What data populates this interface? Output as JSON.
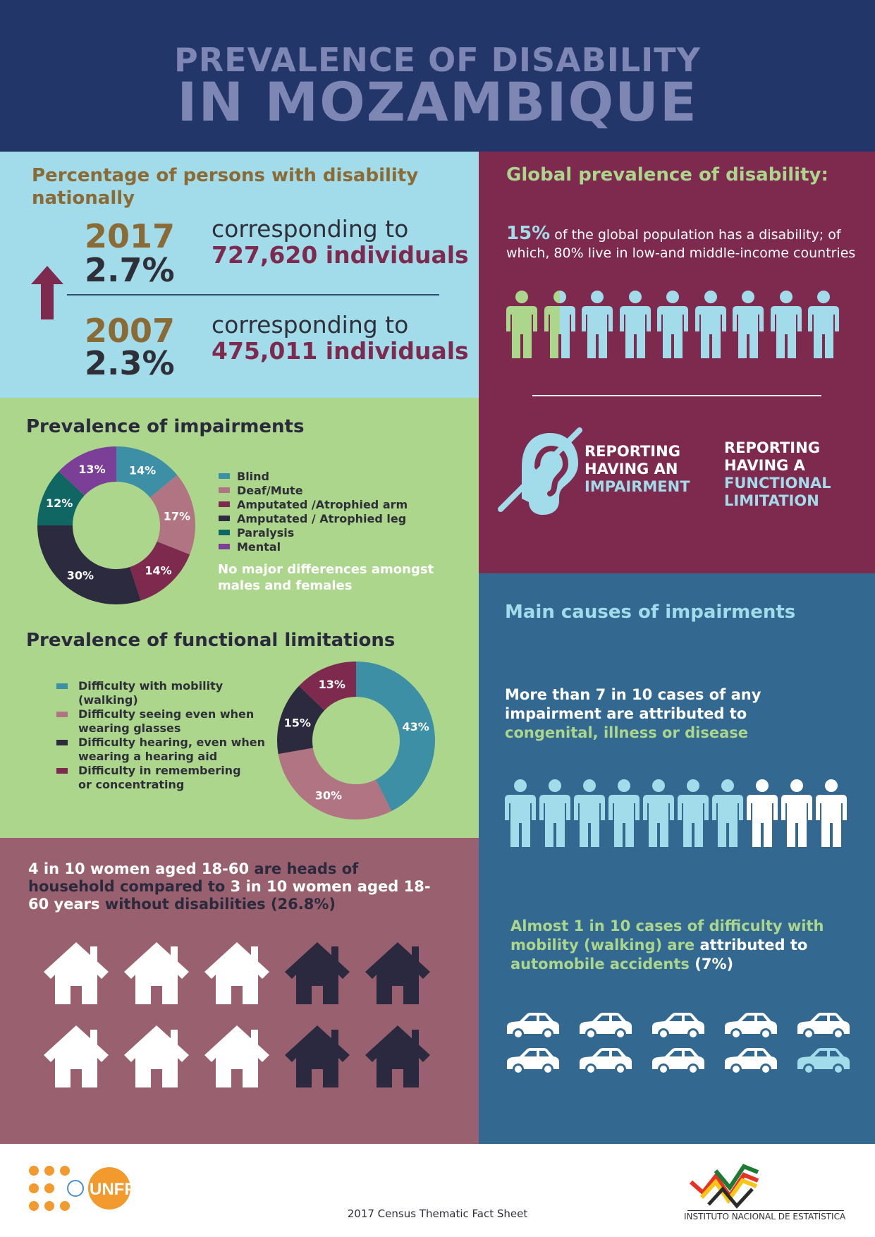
{
  "header": {
    "line1": "PREVALENCE OF DISABILITY",
    "line2": "IN MOZAMBIQUE"
  },
  "national": {
    "title": "Percentage of persons with disability nationally",
    "rows": [
      {
        "year": "2017",
        "pct": "2.7%",
        "corresponding": "corresponding to",
        "individuals": "727,620 individuals"
      },
      {
        "year": "2007",
        "pct": "2.3%",
        "corresponding": "corresponding to",
        "individuals": "475,011 individuals"
      }
    ]
  },
  "impairments": {
    "title": "Prevalence of impairments",
    "legend": [
      "Blind",
      "Deaf/Mute",
      "Amputated /Atrophied arm",
      "Amputated / Atrophied leg",
      "Paralysis",
      "Mental"
    ],
    "note": "No major differences amongst males and females",
    "colors": [
      "#3d8fa5",
      "#b07483",
      "#7e2a4f",
      "#2c2a3e",
      "#0f6663",
      "#7b3f98"
    ]
  },
  "functional": {
    "title": "Prevalence of functional limitations",
    "legend": [
      [
        "Difficulty with mobility",
        "(walking)"
      ],
      [
        "Difficulty seeing even when",
        "wearing glasses"
      ],
      [
        "Difficulty hearing, even when",
        "wearing a hearing aid"
      ],
      [
        "Difficulty in remembering",
        "or concentrating"
      ]
    ],
    "colors": [
      "#3d8fa5",
      "#b07483",
      "#2c2a3e",
      "#7e2a4f"
    ]
  },
  "chart_data": [
    {
      "type": "pie",
      "title": "Prevalence of impairments",
      "categories": [
        "Blind",
        "Deaf/Mute",
        "Amputated /Atrophied arm",
        "Amputated / Atrophied leg",
        "Paralysis",
        "Mental"
      ],
      "values": [
        14,
        17,
        14,
        30,
        12,
        13
      ],
      "labels": [
        "14%",
        "17%",
        "14%",
        "30%",
        "12%",
        "13%"
      ]
    },
    {
      "type": "pie",
      "title": "Prevalence of functional limitations",
      "categories": [
        "Difficulty with mobility (walking)",
        "Difficulty seeing even when wearing glasses",
        "Difficulty hearing, even when wearing a hearing aid",
        "Difficulty in remembering or concentrating"
      ],
      "values": [
        43,
        30,
        15,
        13
      ],
      "labels": [
        "43%",
        "30%",
        "15%",
        "13%"
      ]
    }
  ],
  "women": {
    "p1": "4 in 10 women aged 18-60",
    "p2": " are heads of household compared to ",
    "p3": "3 in 10 women aged 18-60 years",
    "p4": " without disabilities (26.8%)",
    "houses_white": 3,
    "houses_dark": 2
  },
  "global": {
    "title": "Global prevalence of disability:",
    "pct": "15%",
    "text": " of the global population has a disability; of which, 80% live in low-and middle-income countries",
    "people_total": 9,
    "people_highlight": 1.5,
    "report1": [
      "REPORTING",
      "HAVING AN",
      "IMPAIRMENT"
    ],
    "report2": [
      "REPORTING",
      "HAVING A",
      "FUNCTIONAL",
      "LIMITATION"
    ]
  },
  "causes": {
    "title": "Main causes of impairments",
    "t1a": "More than 7 in 10 cases of any impairment are attributed to ",
    "t1b": "congenital, illness or disease",
    "people_total": 10,
    "people_highlight": 7,
    "t2a": "Almost 1 in 10 cases of difficulty with mobility (walking) are ",
    "t2b": "attributed to",
    "t2c": " automobile accidents",
    "t2d": " (7%)",
    "cars_total": 10,
    "cars_highlight": 1
  },
  "footer": {
    "caption": "2017 Census Thematic Fact Sheet",
    "unfpa": "UNFPA",
    "ine": "INSTITUTO NACIONAL DE ESTATÍSTICA"
  }
}
